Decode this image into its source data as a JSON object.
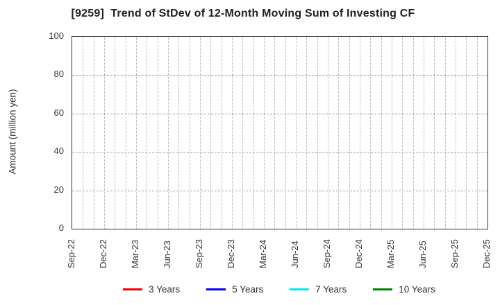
{
  "title": "[9259]  Trend of StDev of 12-Month Moving Sum of Investing CF",
  "chart_data": {
    "type": "line",
    "title": "[9259]  Trend of StDev of 12-Month Moving Sum of Investing CF",
    "xlabel": "",
    "ylabel": "Amount (million yen)",
    "ylim": [
      0,
      100
    ],
    "yticks": [
      0,
      20,
      40,
      60,
      80,
      100
    ],
    "x_tick_labels": [
      "Sep-22",
      "Dec-22",
      "Mar-23",
      "Jun-23",
      "Sep-23",
      "Dec-23",
      "Mar-24",
      "Jun-24",
      "Sep-24",
      "Dec-24",
      "Mar-25",
      "Jun-25",
      "Sep-25",
      "Dec-25"
    ],
    "x_months_total": 39,
    "grid": {
      "vertical": "dotted, monthly",
      "horizontal": "dashed, every 20"
    },
    "legend_position": "bottom",
    "series": [
      {
        "name": "3 Years",
        "color": "#ee0000",
        "values": []
      },
      {
        "name": "5 Years",
        "color": "#0000ee",
        "values": []
      },
      {
        "name": "7 Years",
        "color": "#00e5ee",
        "values": []
      },
      {
        "name": "10 Years",
        "color": "#008000",
        "values": []
      }
    ],
    "note": "plot area is empty - no data lines are drawn"
  }
}
